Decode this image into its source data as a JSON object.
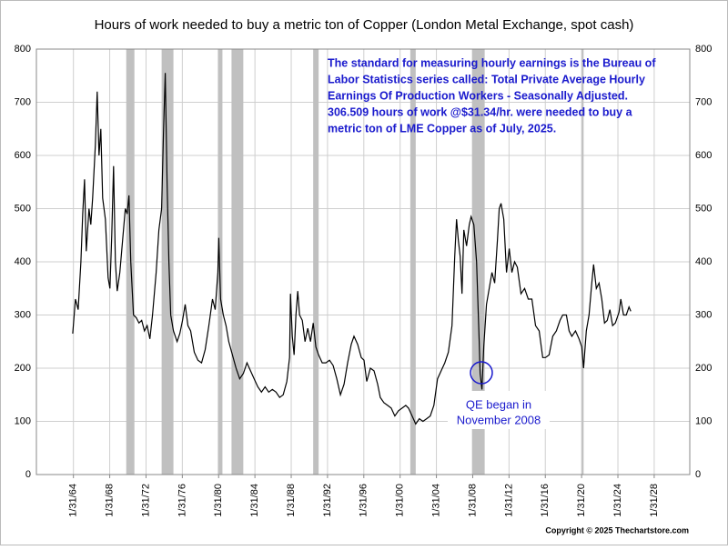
{
  "chart_data": {
    "type": "line",
    "title": "Hours of work needed to buy a metric ton of Copper (London Metal Exchange, spot cash)",
    "note": [
      "The standard for measuring hourly earnings is the Bureau of",
      "Labor Statistics series called:  Total Private Average Hourly",
      "Earnings Of Production Workers - Seasonally Adjusted.",
      "306.509 hours of work @$31.34/hr. were needed to buy a",
      "metric ton of LME Copper as of July, 2025."
    ],
    "annotation": [
      "QE began in",
      "November 2008"
    ],
    "copyright": "Copyright © 2025 Thechartstore.com",
    "x": [
      1964.0,
      1964.3,
      1964.6,
      1964.9,
      1965.1,
      1965.3,
      1965.5,
      1965.8,
      1966.0,
      1966.2,
      1966.5,
      1966.7,
      1966.9,
      1967.1,
      1967.3,
      1967.6,
      1967.9,
      1968.1,
      1968.3,
      1968.5,
      1968.7,
      1968.9,
      1969.2,
      1969.5,
      1969.8,
      1970.0,
      1970.2,
      1970.4,
      1970.7,
      1971.0,
      1971.3,
      1971.6,
      1971.9,
      1972.2,
      1972.5,
      1972.8,
      1973.2,
      1973.5,
      1973.8,
      1974.0,
      1974.2,
      1974.4,
      1974.6,
      1974.8,
      1975.1,
      1975.5,
      1975.8,
      1976.1,
      1976.4,
      1976.7,
      1977.0,
      1977.4,
      1977.8,
      1978.2,
      1978.6,
      1979.0,
      1979.4,
      1979.7,
      1980.0,
      1980.1,
      1980.3,
      1980.6,
      1980.9,
      1981.2,
      1981.6,
      1982.0,
      1982.4,
      1982.8,
      1983.2,
      1983.6,
      1984.0,
      1984.4,
      1984.8,
      1985.2,
      1985.6,
      1986.0,
      1986.4,
      1986.8,
      1987.2,
      1987.6,
      1987.9,
      1988.0,
      1988.2,
      1988.4,
      1988.6,
      1988.8,
      1989.0,
      1989.3,
      1989.6,
      1989.9,
      1990.2,
      1990.5,
      1990.8,
      1991.1,
      1991.5,
      1991.9,
      1992.3,
      1992.7,
      1993.1,
      1993.5,
      1993.9,
      1994.3,
      1994.7,
      1995.0,
      1995.4,
      1995.8,
      1996.1,
      1996.4,
      1996.8,
      1997.2,
      1997.6,
      1997.9,
      1998.3,
      1998.7,
      1999.1,
      1999.5,
      1999.9,
      2000.3,
      2000.7,
      2001.0,
      2001.4,
      2001.8,
      2002.2,
      2002.6,
      2003.0,
      2003.4,
      2003.8,
      2004.2,
      2004.6,
      2005.0,
      2005.4,
      2005.8,
      2006.1,
      2006.3,
      2006.5,
      2006.7,
      2006.9,
      2007.1,
      2007.4,
      2007.7,
      2007.9,
      2008.2,
      2008.5,
      2008.8,
      2008.9,
      2009.1,
      2009.3,
      2009.6,
      2009.9,
      2010.2,
      2010.5,
      2010.8,
      2011.0,
      2011.2,
      2011.5,
      2011.8,
      2012.1,
      2012.4,
      2012.7,
      2013.0,
      2013.4,
      2013.8,
      2014.2,
      2014.6,
      2015.0,
      2015.4,
      2015.8,
      2016.1,
      2016.5,
      2016.9,
      2017.3,
      2017.7,
      2018.0,
      2018.4,
      2018.7,
      2019.0,
      2019.4,
      2019.8,
      2020.1,
      2020.3,
      2020.6,
      2020.9,
      2021.2,
      2021.4,
      2021.7,
      2022.0,
      2022.3,
      2022.6,
      2022.9,
      2023.2,
      2023.5,
      2023.8,
      2024.2,
      2024.4,
      2024.7,
      2025.0,
      2025.3,
      2025.5
    ],
    "series": [
      {
        "name": "Hours of work",
        "color": "#000000",
        "values": [
          265,
          330,
          310,
          400,
          490,
          555,
          420,
          500,
          470,
          520,
          620,
          720,
          600,
          650,
          520,
          480,
          370,
          350,
          450,
          580,
          400,
          345,
          380,
          440,
          500,
          490,
          525,
          400,
          300,
          295,
          285,
          290,
          270,
          280,
          255,
          300,
          380,
          460,
          500,
          640,
          755,
          550,
          400,
          300,
          270,
          250,
          265,
          290,
          320,
          280,
          270,
          230,
          215,
          210,
          235,
          280,
          330,
          310,
          380,
          445,
          330,
          300,
          280,
          250,
          225,
          200,
          180,
          190,
          210,
          195,
          180,
          165,
          155,
          165,
          155,
          160,
          155,
          145,
          150,
          175,
          220,
          340,
          260,
          225,
          300,
          345,
          300,
          290,
          250,
          275,
          250,
          285,
          240,
          225,
          210,
          210,
          215,
          205,
          180,
          150,
          170,
          210,
          245,
          260,
          245,
          220,
          215,
          175,
          200,
          195,
          170,
          145,
          135,
          130,
          125,
          110,
          120,
          125,
          130,
          125,
          110,
          95,
          105,
          100,
          105,
          110,
          130,
          180,
          195,
          210,
          230,
          280,
          410,
          480,
          440,
          410,
          340,
          460,
          430,
          470,
          485,
          470,
          400,
          250,
          190,
          160,
          240,
          320,
          350,
          380,
          360,
          440,
          500,
          510,
          480,
          380,
          425,
          380,
          400,
          390,
          340,
          350,
          330,
          330,
          280,
          270,
          220,
          220,
          225,
          260,
          270,
          290,
          300,
          300,
          270,
          260,
          270,
          255,
          240,
          200,
          270,
          300,
          360,
          395,
          350,
          360,
          330,
          285,
          290,
          310,
          280,
          285,
          305,
          330,
          300,
          300,
          315,
          307
        ]
      }
    ],
    "recessions": [
      [
        1969.9,
        1970.8
      ],
      [
        1973.8,
        1975.1
      ],
      [
        1980.0,
        1980.5
      ],
      [
        1981.5,
        1982.8
      ],
      [
        1990.5,
        1991.1
      ],
      [
        2001.2,
        2001.8
      ],
      [
        2008.0,
        2009.4
      ],
      [
        2020.1,
        2020.3
      ]
    ],
    "xlim": [
      1960,
      2032
    ],
    "xticks": [
      {
        "value": 1964.08,
        "label": "1/31/64"
      },
      {
        "value": 1968.08,
        "label": "1/31/68"
      },
      {
        "value": 1972.08,
        "label": "1/31/72"
      },
      {
        "value": 1976.08,
        "label": "1/31/76"
      },
      {
        "value": 1980.08,
        "label": "1/31/80"
      },
      {
        "value": 1984.08,
        "label": "1/31/84"
      },
      {
        "value": 1988.08,
        "label": "1/31/88"
      },
      {
        "value": 1992.08,
        "label": "1/31/92"
      },
      {
        "value": 1996.08,
        "label": "1/31/96"
      },
      {
        "value": 2000.08,
        "label": "1/31/00"
      },
      {
        "value": 2004.08,
        "label": "1/31/04"
      },
      {
        "value": 2008.08,
        "label": "1/31/08"
      },
      {
        "value": 2012.08,
        "label": "1/31/12"
      },
      {
        "value": 2016.08,
        "label": "1/31/16"
      },
      {
        "value": 2020.08,
        "label": "1/31/20"
      },
      {
        "value": 2024.08,
        "label": "1/31/24"
      },
      {
        "value": 2028.08,
        "label": "1/31/28"
      }
    ],
    "ylim": [
      0,
      800
    ],
    "yticks": [
      0,
      100,
      200,
      300,
      400,
      500,
      600,
      700,
      800
    ],
    "grid": true
  }
}
